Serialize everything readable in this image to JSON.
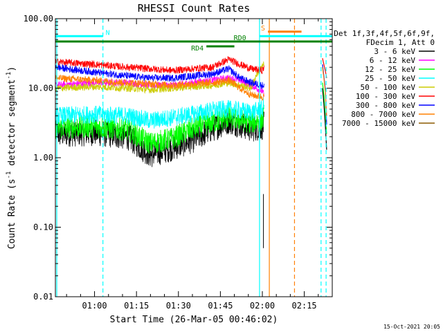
{
  "chart_data": {
    "type": "line",
    "title": "RHESSI Count Rates",
    "xlabel": "Start Time (26-Mar-05 00:46:02)",
    "ylabel_main": "Count Rate (s",
    "ylabel_sup": "-1",
    "ylabel_tail": " detector segment",
    "ylabel_sup2": "-1",
    "ylabel_close": ")",
    "y_scale": "log",
    "ylim": [
      0.01,
      100
    ],
    "xlim_minutes": [
      46.0,
      145.0
    ],
    "x_ticks": [
      {
        "label": "01:00",
        "minute": 60
      },
      {
        "label": "01:15",
        "minute": 75
      },
      {
        "label": "01:30",
        "minute": 90
      },
      {
        "label": "01:45",
        "minute": 105
      },
      {
        "label": "02:00",
        "minute": 120
      },
      {
        "label": "02:15",
        "minute": 135
      }
    ],
    "y_ticks": [
      {
        "label": "100.00",
        "value": 100
      },
      {
        "label": "10.00",
        "value": 10
      },
      {
        "label": "1.00",
        "value": 1
      },
      {
        "label": "0.10",
        "value": 0.1
      },
      {
        "label": "0.01",
        "value": 0.01
      }
    ],
    "legend_header": [
      "Det 1f,3f,4f,5f,6f,9f,",
      "FDecim 1, Att 0"
    ],
    "legend_placement": "right",
    "series": [
      {
        "name": "3 - 6 keV",
        "color": "#000000",
        "x": [
          46,
          60,
          72,
          80,
          88,
          95,
          102,
          108,
          112,
          116,
          120,
          120.6
        ],
        "y": [
          2.2,
          2.3,
          2.0,
          1.1,
          1.4,
          1.8,
          2.6,
          3.4,
          3.0,
          2.6,
          2.8,
          3.0
        ]
      },
      {
        "name": "6 - 12 keV",
        "color": "#ff00ff",
        "x": [
          46,
          60,
          72,
          80,
          88,
          95,
          102,
          108,
          112,
          116,
          120,
          120.6
        ],
        "y": [
          11.0,
          12.0,
          12.0,
          11.0,
          11.0,
          12.0,
          13.0,
          14.0,
          13.0,
          11.0,
          9.0,
          8.0
        ]
      },
      {
        "name": "12 - 25 keV",
        "color": "#00ff00",
        "x": [
          46,
          60,
          72,
          80,
          88,
          95,
          102,
          108,
          112,
          116,
          120,
          120.6
        ],
        "y": [
          2.7,
          2.8,
          2.5,
          1.6,
          1.9,
          2.6,
          3.2,
          3.8,
          3.5,
          3.2,
          3.5,
          4.0
        ]
      },
      {
        "name": "25 - 50 keV",
        "color": "#00ffff",
        "x": [
          46,
          60,
          72,
          80,
          88,
          95,
          102,
          108,
          112,
          116,
          120,
          120.6
        ],
        "y": [
          4.0,
          4.2,
          4.0,
          3.4,
          3.8,
          4.2,
          4.8,
          5.0,
          4.8,
          4.5,
          5.0,
          6.0
        ]
      },
      {
        "name": "50 - 100 keV",
        "color": "#cccc00",
        "x": [
          46,
          60,
          72,
          80,
          88,
          95,
          102,
          108,
          112,
          116,
          118,
          120.6
        ],
        "y": [
          10.0,
          10.5,
          10.0,
          9.5,
          10.0,
          10.5,
          11.0,
          12.0,
          11.0,
          10.0,
          16.0,
          22.0
        ]
      },
      {
        "name": "100 - 300 keV",
        "color": "#ff0000",
        "x": [
          46,
          60,
          72,
          80,
          88,
          95,
          102,
          108,
          112,
          116,
          120,
          120.6
        ],
        "y": [
          24.0,
          22.0,
          20.0,
          19.0,
          18.0,
          19.0,
          20.0,
          26.0,
          22.0,
          19.0,
          18.0,
          20.0
        ]
      },
      {
        "name": "300 - 800 keV",
        "color": "#0000ff",
        "x": [
          46,
          60,
          72,
          80,
          88,
          95,
          102,
          108,
          112,
          116,
          120,
          120.6
        ],
        "y": [
          20.0,
          17.0,
          15.0,
          14.0,
          14.0,
          15.0,
          16.0,
          19.0,
          14.0,
          12.0,
          11.0,
          11.0
        ]
      },
      {
        "name": "800 - 7000 keV",
        "color": "#ff8000",
        "x": [
          46,
          60,
          72,
          80,
          88,
          95,
          102,
          108,
          112,
          116,
          120,
          120.6
        ],
        "y": [
          14.0,
          13.0,
          12.0,
          11.5,
          11.0,
          11.5,
          12.0,
          13.0,
          10.0,
          8.0,
          7.5,
          7.5
        ]
      },
      {
        "name": "7000 - 15000 keV",
        "color": "#8b5a00",
        "x": [],
        "y": []
      }
    ],
    "mode_bars": [
      {
        "label": "N",
        "color": "#00ffff",
        "x_start": 46,
        "x_end": 63,
        "level": 56
      },
      {
        "label": "",
        "color": "#00ffff",
        "x_start": 119,
        "x_end": 145,
        "level": 56
      },
      {
        "label": "S",
        "color": "#ff8000",
        "x_start": 122,
        "x_end": 134,
        "level": 65
      },
      {
        "label": "RD0",
        "color": "#008000",
        "x_start": 46,
        "x_end": 145,
        "level": 47
      },
      {
        "label": "RD4",
        "color": "#008000",
        "x_start": 100,
        "x_end": 110,
        "level": 40
      }
    ],
    "vertical_lines": [
      {
        "minute": 46.5,
        "color": "#00ffff",
        "style": "solid"
      },
      {
        "minute": 63.0,
        "color": "#00ffff",
        "style": "dashed"
      },
      {
        "minute": 119.0,
        "color": "#00ffff",
        "style": "solid"
      },
      {
        "minute": 122.5,
        "color": "#ff8000",
        "style": "solid"
      },
      {
        "minute": 131.5,
        "color": "#ff8000",
        "style": "dashed"
      },
      {
        "minute": 141.0,
        "color": "#00ffff",
        "style": "dashed"
      },
      {
        "minute": 142.8,
        "color": "#00ffff",
        "style": "dashed"
      }
    ],
    "tail_segment": {
      "x": [
        141.5,
        142.0,
        142.5,
        143.0
      ],
      "series_y": {
        "red": [
          27,
          22,
          18,
          14
        ],
        "blue": [
          22,
          15,
          10,
          3
        ],
        "orange": [
          20,
          14,
          9,
          4
        ],
        "green": [
          12,
          8,
          4,
          2.2
        ],
        "black": [
          10,
          6,
          3,
          1.3
        ]
      }
    }
  },
  "footer_date": "15-Oct-2021 20:05"
}
